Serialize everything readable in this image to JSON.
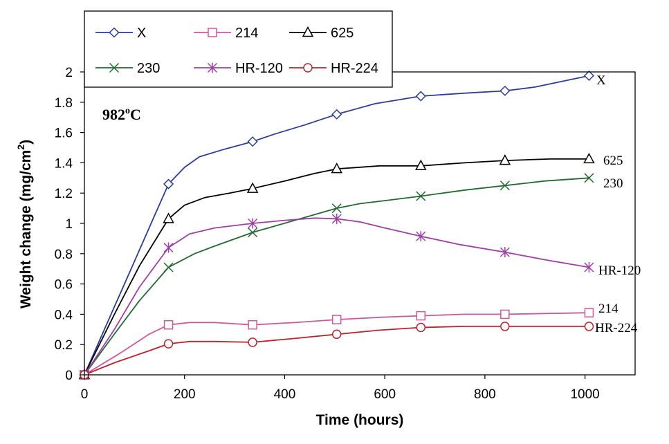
{
  "chart_data": {
    "type": "line",
    "annotation": {
      "base": "982",
      "sup": "o",
      "tail": "C"
    },
    "xlabel": "Time (hours)",
    "ylabel": "Weight change (mg/cm",
    "ylabel_sup": "2",
    "ylabel_close": ")",
    "xlim": [
      0,
      1100
    ],
    "ylim": [
      0,
      2
    ],
    "xticks": [
      0,
      200,
      400,
      600,
      800,
      1000
    ],
    "yticks": [
      0,
      0.2,
      0.4,
      0.6,
      0.8,
      1,
      1.2,
      1.4,
      1.6,
      1.8,
      2
    ],
    "grid": false,
    "legend_position": "top-left",
    "series": [
      {
        "name": "X",
        "end_label": "X",
        "color": "#2B3A9E",
        "marker": "diamond",
        "markers": [
          [
            0,
            0
          ],
          [
            168,
            1.26
          ],
          [
            336,
            1.54
          ],
          [
            504,
            1.72
          ],
          [
            672,
            1.84
          ],
          [
            840,
            1.875
          ],
          [
            1008,
            1.975
          ]
        ],
        "curve": [
          [
            0,
            0
          ],
          [
            60,
            0.45
          ],
          [
            100,
            0.75
          ],
          [
            140,
            1.05
          ],
          [
            168,
            1.26
          ],
          [
            200,
            1.37
          ],
          [
            230,
            1.44
          ],
          [
            280,
            1.49
          ],
          [
            336,
            1.54
          ],
          [
            380,
            1.59
          ],
          [
            440,
            1.65
          ],
          [
            504,
            1.72
          ],
          [
            580,
            1.79
          ],
          [
            672,
            1.84
          ],
          [
            760,
            1.86
          ],
          [
            840,
            1.875
          ],
          [
            900,
            1.9
          ],
          [
            1008,
            1.975
          ]
        ]
      },
      {
        "name": "214",
        "end_label": "214",
        "color": "#D1579B",
        "marker": "square",
        "markers": [
          [
            0,
            0
          ],
          [
            168,
            0.33
          ],
          [
            336,
            0.33
          ],
          [
            504,
            0.365
          ],
          [
            672,
            0.39
          ],
          [
            840,
            0.4
          ],
          [
            1008,
            0.41
          ]
        ],
        "curve": [
          [
            0,
            0
          ],
          [
            70,
            0.14
          ],
          [
            130,
            0.27
          ],
          [
            168,
            0.33
          ],
          [
            210,
            0.345
          ],
          [
            260,
            0.345
          ],
          [
            336,
            0.33
          ],
          [
            420,
            0.345
          ],
          [
            504,
            0.365
          ],
          [
            590,
            0.38
          ],
          [
            672,
            0.39
          ],
          [
            760,
            0.4
          ],
          [
            840,
            0.4
          ],
          [
            1008,
            0.41
          ]
        ]
      },
      {
        "name": "625",
        "end_label": "625",
        "color": "#000000",
        "marker": "triangle",
        "markers": [
          [
            0,
            0
          ],
          [
            168,
            1.03
          ],
          [
            336,
            1.23
          ],
          [
            504,
            1.36
          ],
          [
            672,
            1.38
          ],
          [
            840,
            1.415
          ],
          [
            1008,
            1.425
          ]
        ],
        "curve": [
          [
            0,
            0
          ],
          [
            60,
            0.4
          ],
          [
            110,
            0.72
          ],
          [
            168,
            1.03
          ],
          [
            200,
            1.12
          ],
          [
            240,
            1.17
          ],
          [
            290,
            1.2
          ],
          [
            336,
            1.23
          ],
          [
            400,
            1.28
          ],
          [
            460,
            1.33
          ],
          [
            504,
            1.36
          ],
          [
            590,
            1.38
          ],
          [
            672,
            1.38
          ],
          [
            760,
            1.4
          ],
          [
            840,
            1.415
          ],
          [
            930,
            1.425
          ],
          [
            1008,
            1.425
          ]
        ]
      },
      {
        "name": "230",
        "end_label": "230",
        "color": "#1F6B30",
        "marker": "x",
        "markers": [
          [
            0,
            0
          ],
          [
            168,
            0.71
          ],
          [
            336,
            0.94
          ],
          [
            504,
            1.1
          ],
          [
            672,
            1.18
          ],
          [
            840,
            1.25
          ],
          [
            1008,
            1.3
          ]
        ],
        "curve": [
          [
            0,
            0
          ],
          [
            60,
            0.27
          ],
          [
            110,
            0.49
          ],
          [
            168,
            0.71
          ],
          [
            220,
            0.8
          ],
          [
            260,
            0.85
          ],
          [
            336,
            0.94
          ],
          [
            420,
            1.02
          ],
          [
            504,
            1.1
          ],
          [
            550,
            1.13
          ],
          [
            600,
            1.15
          ],
          [
            672,
            1.18
          ],
          [
            760,
            1.22
          ],
          [
            840,
            1.25
          ],
          [
            920,
            1.28
          ],
          [
            1008,
            1.3
          ]
        ]
      },
      {
        "name": "HR-120",
        "end_label": "HR-120",
        "color": "#A03DA8",
        "marker": "asterisk",
        "markers": [
          [
            0,
            0
          ],
          [
            168,
            0.84
          ],
          [
            336,
            1.0
          ],
          [
            504,
            1.03
          ],
          [
            672,
            0.915
          ],
          [
            840,
            0.81
          ],
          [
            1008,
            0.71
          ]
        ],
        "curve": [
          [
            0,
            0
          ],
          [
            60,
            0.3
          ],
          [
            110,
            0.58
          ],
          [
            168,
            0.84
          ],
          [
            210,
            0.93
          ],
          [
            260,
            0.97
          ],
          [
            336,
            1.0
          ],
          [
            400,
            1.02
          ],
          [
            460,
            1.035
          ],
          [
            504,
            1.03
          ],
          [
            550,
            1.01
          ],
          [
            600,
            0.97
          ],
          [
            672,
            0.915
          ],
          [
            750,
            0.86
          ],
          [
            840,
            0.81
          ],
          [
            920,
            0.76
          ],
          [
            1008,
            0.71
          ]
        ]
      },
      {
        "name": "HR-224",
        "end_label": "HR-224",
        "color": "#C0202A",
        "marker": "circle",
        "markers": [
          [
            0,
            0
          ],
          [
            168,
            0.205
          ],
          [
            336,
            0.215
          ],
          [
            504,
            0.268
          ],
          [
            672,
            0.313
          ],
          [
            840,
            0.32
          ],
          [
            1008,
            0.32
          ]
        ],
        "curve": [
          [
            0,
            0
          ],
          [
            60,
            0.08
          ],
          [
            130,
            0.16
          ],
          [
            168,
            0.205
          ],
          [
            210,
            0.22
          ],
          [
            260,
            0.22
          ],
          [
            336,
            0.215
          ],
          [
            420,
            0.24
          ],
          [
            504,
            0.268
          ],
          [
            590,
            0.295
          ],
          [
            672,
            0.313
          ],
          [
            760,
            0.32
          ],
          [
            840,
            0.32
          ],
          [
            1008,
            0.32
          ]
        ]
      }
    ]
  }
}
